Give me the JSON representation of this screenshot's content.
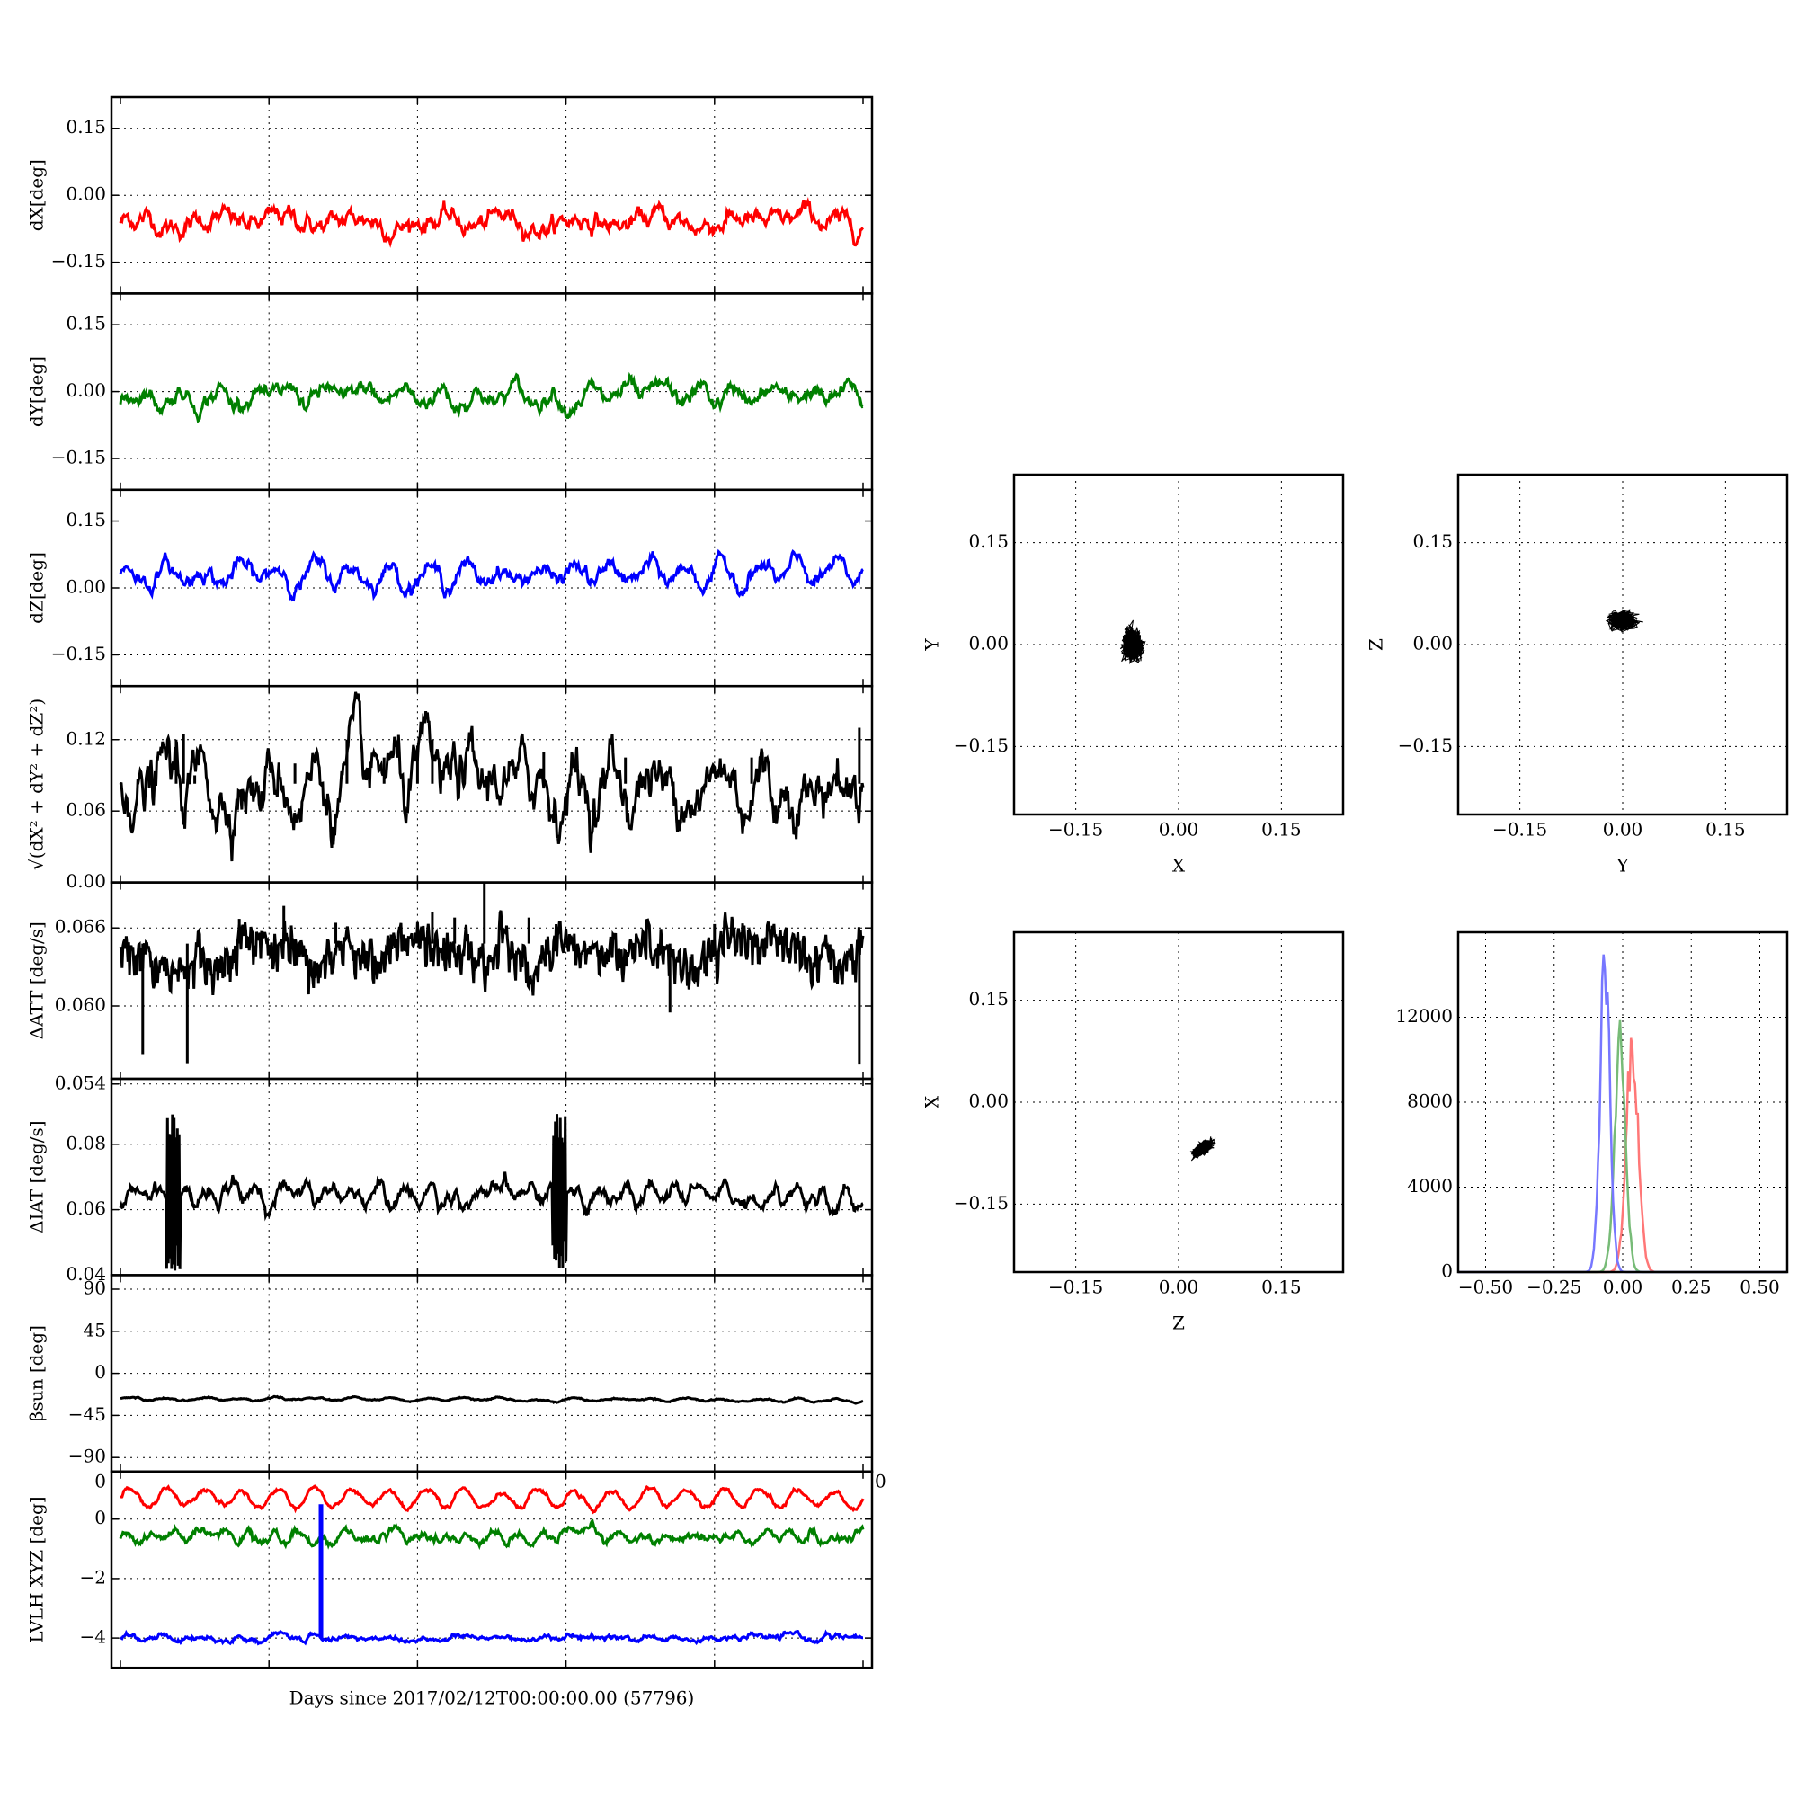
{
  "figure": {
    "xlabel": "Days since 2017/02/12T00:00:00.00 (57796)"
  },
  "chart_data": [
    {
      "type": "line",
      "ylabel": "dX[deg]",
      "ylim": [
        -0.22,
        0.22
      ],
      "yticks": [
        0.15,
        0.0,
        -0.15
      ],
      "ytick_labels": [
        "0.15",
        "0.00",
        "−0.15"
      ],
      "grid": true,
      "series": [
        {
          "color": "#ff0000",
          "mean": -0.06,
          "noise": 0.007,
          "wave_amp": 0.01,
          "period_days": 1.0,
          "shape": "smooth"
        }
      ]
    },
    {
      "type": "line",
      "ylabel": "dY[deg]",
      "ylim": [
        -0.22,
        0.22
      ],
      "yticks": [
        0.15,
        0.0,
        -0.15
      ],
      "ytick_labels": [
        "0.15",
        "0.00",
        "−0.15"
      ],
      "grid": true,
      "series": [
        {
          "color": "#008000",
          "mean": -0.01,
          "noise": 0.006,
          "wave_amp": 0.02,
          "period_days": 0.5,
          "shape": "sawtooth"
        }
      ]
    },
    {
      "type": "line",
      "ylabel": "dZ[deg]",
      "ylim": [
        -0.22,
        0.22
      ],
      "yticks": [
        0.15,
        0.0,
        -0.15
      ],
      "ytick_labels": [
        "0.15",
        "0.00",
        "−0.15"
      ],
      "grid": true,
      "series": [
        {
          "color": "#0000ff",
          "mean": 0.03,
          "noise": 0.006,
          "wave_amp": 0.018,
          "period_days": 0.5,
          "shape": "smooth"
        }
      ]
    },
    {
      "type": "line",
      "ylabel_tex": "√(dX² + dY² + dZ²)",
      "ylim": [
        0.0,
        0.165
      ],
      "yticks": [
        0.12,
        0.06,
        0.0
      ],
      "ytick_labels": [
        "0.12",
        "0.06",
        "0.00"
      ],
      "grid": true,
      "series": [
        {
          "color": "#000000",
          "mean": 0.083,
          "noise": 0.008,
          "wave_amp": 0.01,
          "period_days": 0.5,
          "shape": "smooth",
          "spikes": [
            [
              0.75,
              0.12
            ],
            [
              0.85,
              0.125
            ],
            [
              1.0,
              0.09
            ],
            [
              2.35,
              0.1
            ],
            [
              3.05,
              0.12
            ],
            [
              3.55,
              0.105
            ],
            [
              4.0,
              0.115
            ],
            [
              4.2,
              0.12
            ],
            [
              5.7,
              0.11
            ],
            [
              6.8,
              0.105
            ],
            [
              8.5,
              0.105
            ],
            [
              9.95,
              0.13
            ]
          ]
        }
      ]
    },
    {
      "type": "line",
      "ylabel": "ΔATT [deg/s]",
      "ylim": [
        0.0544,
        0.0695
      ],
      "yticks": [
        0.066,
        0.06,
        0.054
      ],
      "ytick_labels": [
        "0.066",
        "0.060",
        "0.054"
      ],
      "grid": true,
      "series": [
        {
          "color": "#000000",
          "mean": 0.0648,
          "noise": 0.0004,
          "wave_amp": 0.0012,
          "period_days": 0.08,
          "shape": "comb",
          "spikes": [
            [
              0.3,
              0.0563
            ],
            [
              0.9,
              0.0556
            ],
            [
              1.6,
              0.0667
            ],
            [
              2.2,
              0.0677
            ],
            [
              2.9,
              0.0664
            ],
            [
              4.2,
              0.0672
            ],
            [
              4.5,
              0.0668
            ],
            [
              4.9,
              0.0695
            ],
            [
              5.5,
              0.0668
            ],
            [
              7.4,
              0.0595
            ],
            [
              8.0,
              0.0663
            ],
            [
              9.95,
              0.0555
            ]
          ]
        }
      ]
    },
    {
      "type": "line",
      "ylabel": "ΔIAT [deg/s]",
      "ylim": [
        0.04,
        0.1
      ],
      "yticks": [
        0.08,
        0.06,
        0.04
      ],
      "ytick_labels": [
        "0.08",
        "0.06",
        "0.04"
      ],
      "grid": true,
      "series": [
        {
          "color": "#000000",
          "mean": 0.0645,
          "noise": 0.0008,
          "wave_amp": 0.003,
          "period_days": 0.33,
          "shape": "sawtooth",
          "bursts": [
            [
              0.62,
              0.8,
              0.041,
              0.092
            ],
            [
              5.82,
              6.0,
              0.041,
              0.09
            ]
          ]
        }
      ]
    },
    {
      "type": "line",
      "ylabel_tex": "βsun [deg]",
      "ylim": [
        -105,
        105
      ],
      "yticks": [
        90,
        45,
        0,
        -45,
        -90
      ],
      "ytick_labels": [
        "90",
        "45",
        "0",
        "−45",
        "−90"
      ],
      "grid": true,
      "series": [
        {
          "color": "#000000",
          "mean": -27,
          "noise": 0.3,
          "wave_amp": 1.5,
          "period_days": 0.5,
          "shape": "smooth",
          "trend": -0.4
        }
      ]
    },
    {
      "type": "line",
      "ylabel": "LVLH XYZ [deg]",
      "ylim": [
        -5.0,
        1.6
      ],
      "yticks": [
        0,
        -2,
        -4
      ],
      "ytick_labels": [
        "0",
        "−2",
        "−4"
      ],
      "corner_label_left": "0",
      "corner_label_right": "0",
      "grid": true,
      "series": [
        {
          "color": "#ff0000",
          "mean": 0.7,
          "noise": 0.03,
          "wave_amp": 0.3,
          "period_days": 0.5,
          "shape": "smooth"
        },
        {
          "color": "#008000",
          "mean": -0.6,
          "noise": 0.05,
          "wave_amp": 0.12,
          "period_days": 0.33,
          "shape": "smooth"
        },
        {
          "color": "#0000ff",
          "mean": -4.0,
          "noise": 0.03,
          "wave_amp": 0.06,
          "period_days": 0.5,
          "shape": "smooth"
        }
      ],
      "vbars": [
        {
          "x": 2.7,
          "y0": -4.0,
          "y1": 0.5,
          "color": "#0000ff"
        }
      ]
    },
    {
      "type": "scatter",
      "xlabel": "X",
      "ylabel": "Y",
      "xlim": [
        -0.24,
        0.24
      ],
      "ylim": [
        -0.25,
        0.25
      ],
      "ticks": [
        -0.15,
        0.0,
        0.15
      ],
      "tick_labels": [
        "−0.15",
        "0.00",
        "0.15"
      ],
      "grid": true,
      "cluster": {
        "cx": -0.067,
        "cy": 0.0,
        "sx": 0.011,
        "sy": 0.018,
        "rho": 0.0,
        "n": 1800,
        "color": "#000000"
      }
    },
    {
      "type": "scatter",
      "xlabel": "Y",
      "ylabel": "Z",
      "xlim": [
        -0.24,
        0.24
      ],
      "ylim": [
        -0.25,
        0.25
      ],
      "ticks": [
        -0.15,
        0.0,
        0.15
      ],
      "tick_labels": [
        "−0.15",
        "0.00",
        "0.15"
      ],
      "grid": true,
      "cluster": {
        "cx": 0.0,
        "cy": 0.035,
        "sx": 0.015,
        "sy": 0.01,
        "rho": 0.0,
        "n": 1800,
        "color": "#000000"
      }
    },
    {
      "type": "scatter",
      "xlabel": "Z",
      "ylabel": "X",
      "xlim": [
        -0.24,
        0.24
      ],
      "ylim": [
        -0.25,
        0.25
      ],
      "ticks": [
        -0.15,
        0.0,
        0.15
      ],
      "tick_labels": [
        "−0.15",
        "0.00",
        "0.15"
      ],
      "grid": true,
      "cluster": {
        "cx": 0.035,
        "cy": -0.068,
        "sx": 0.011,
        "sy": 0.009,
        "rho": 0.6,
        "n": 1800,
        "color": "#000000"
      }
    },
    {
      "type": "histogram",
      "xlim": [
        -0.6,
        0.6
      ],
      "ylim": [
        0,
        16000
      ],
      "xticks": [
        -0.5,
        -0.25,
        0.0,
        0.25,
        0.5
      ],
      "xtick_labels": [
        "−0.50",
        "−0.25",
        "0.00",
        "0.25",
        "0.50"
      ],
      "yticks": [
        12000,
        8000,
        4000,
        0
      ],
      "ytick_labels": [
        "12000",
        "8000",
        "4000",
        "0"
      ],
      "grid": true,
      "series": [
        {
          "color": "#ff7777",
          "center": 0.035,
          "width": 0.022,
          "peak": 11000
        },
        {
          "color": "#77bb77",
          "center": -0.01,
          "width": 0.02,
          "peak": 11000
        },
        {
          "color": "#7777ff",
          "center": -0.065,
          "width": 0.018,
          "peak": 14600
        }
      ]
    }
  ]
}
